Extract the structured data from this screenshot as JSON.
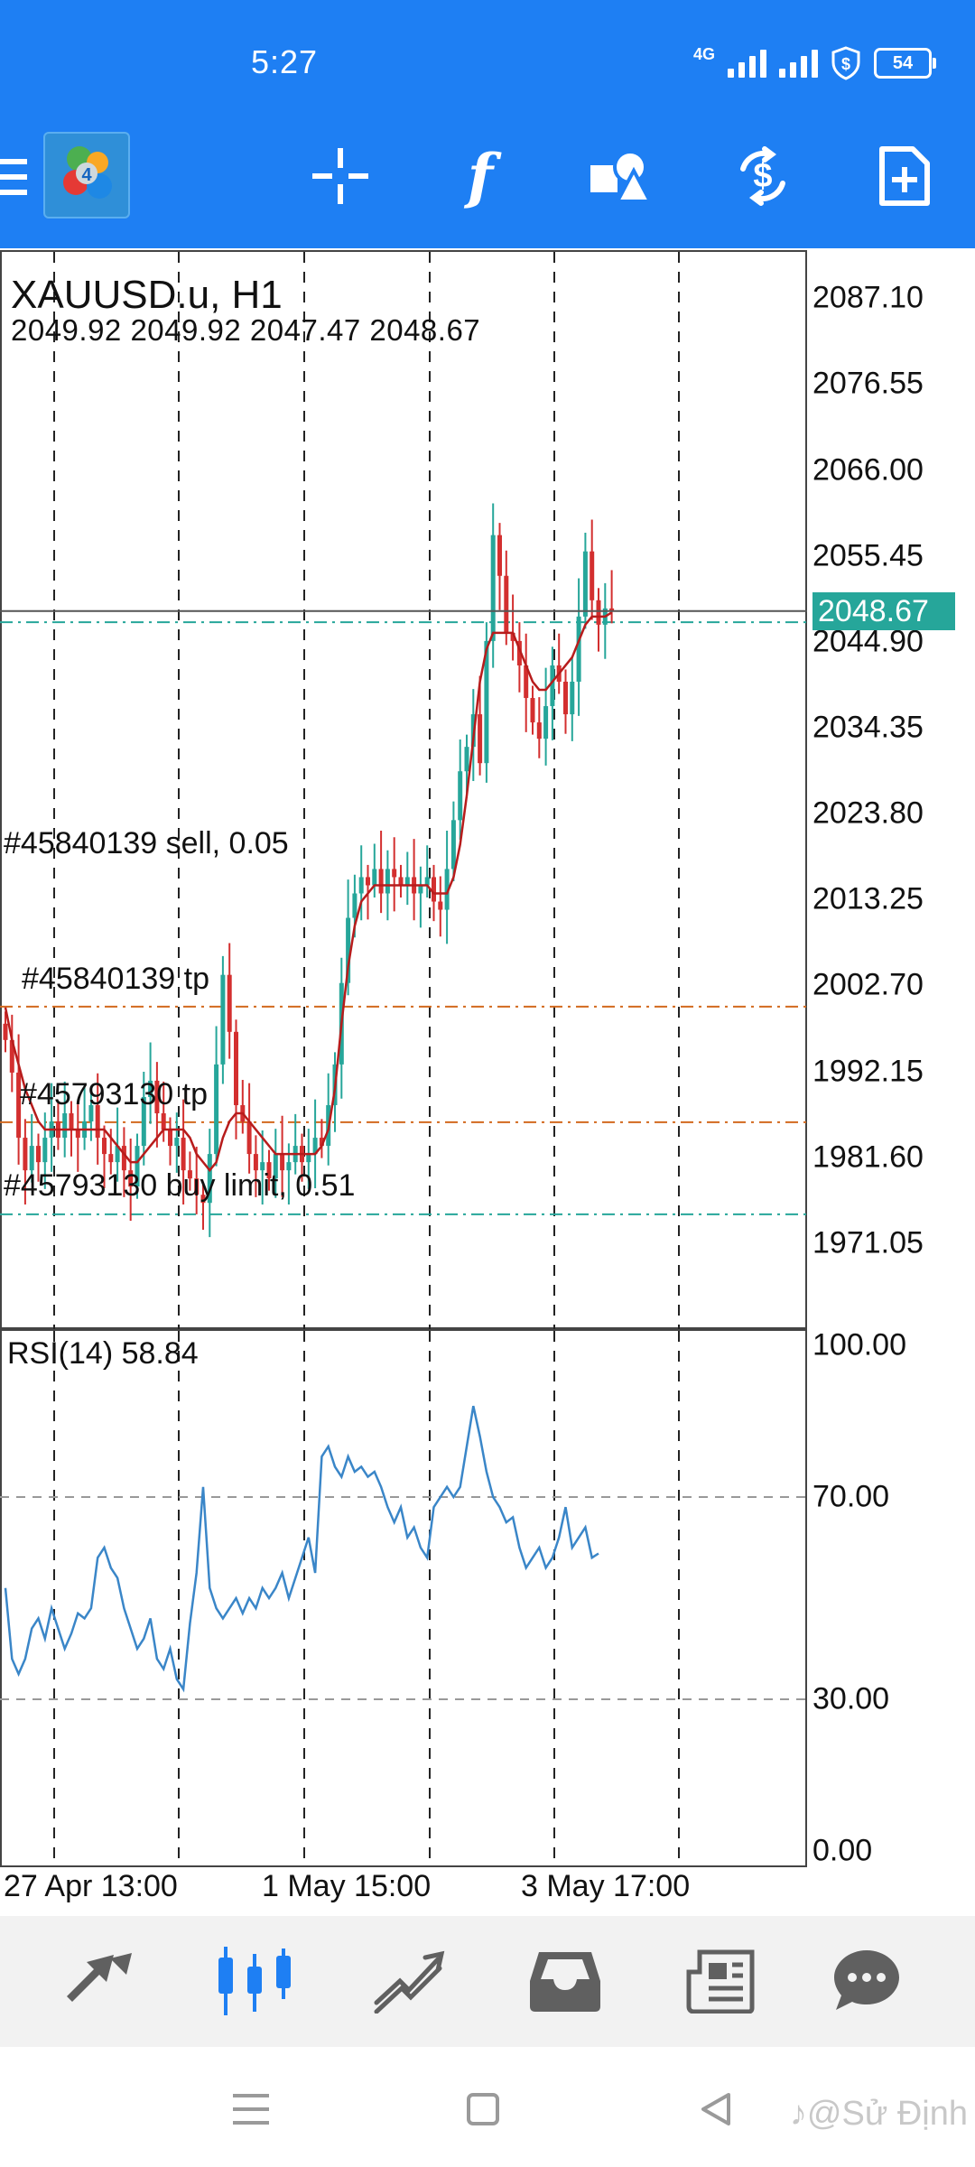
{
  "status_bar": {
    "time": "5:27",
    "network": "4G",
    "battery": "54"
  },
  "toolbar": {
    "logo_icon": "metatrader-logo-icon",
    "icons": [
      "menu-icon",
      "crosshair-icon",
      "indicators-icon",
      "objects-icon",
      "trade-icon",
      "new-order-icon"
    ],
    "indicators_label": "f"
  },
  "chart": {
    "symbol_timeframe": "XAUUSD.u, H1",
    "ohlc": "2049.92 2049.92 2047.47 2048.67",
    "current_price": "2048.67",
    "price_ticks": [
      "2087.10",
      "2076.55",
      "2066.00",
      "2055.45",
      "2044.90",
      "2034.35",
      "2023.80",
      "2013.25",
      "2002.70",
      "1992.15",
      "1981.60",
      "1971.05"
    ],
    "orders": [
      {
        "label": "#45840139 sell, 0.05",
        "price": 2047.3,
        "color": "#26a69a"
      },
      {
        "label": "#45840139 tp",
        "price": 2000.1,
        "color": "#d2691e"
      },
      {
        "label": "#45793130 tp",
        "price": 1985.9,
        "color": "#d2691e"
      },
      {
        "label": "#45793130 buy limit, 0.51",
        "price": 1974.6,
        "color": "#26a69a"
      }
    ],
    "time_labels": [
      "27 Apr 13:00",
      "1 May 15:00",
      "3 May 17:00"
    ],
    "colors": {
      "bull": "#26a69a",
      "bear": "#d32f2f",
      "ma": "#b71c1c",
      "rsi": "#3a86c8"
    }
  },
  "rsi": {
    "label": "RSI(14) 58.84",
    "ticks": [
      "100.00",
      "70.00",
      "30.00",
      "0.00"
    ]
  },
  "chart_data": [
    {
      "type": "candlestick",
      "title": "XAUUSD.u, H1",
      "ylim": [
        1960.5,
        2093.0
      ],
      "close_series": [
        1996,
        1992,
        1984,
        1980,
        1983,
        1981,
        1984,
        1986,
        1984,
        1987,
        1985,
        1984,
        1986,
        1988,
        1984,
        1982,
        1981,
        1983,
        1980,
        1978,
        1983,
        1989,
        1991,
        1987,
        1985,
        1983,
        1984,
        1980,
        1979,
        1977,
        1976,
        1982,
        1993,
        2004,
        1997,
        1988,
        1986,
        1982,
        1980,
        1981,
        1979,
        1982,
        1980,
        1981,
        1983,
        1981,
        1982,
        1984,
        1983,
        1988,
        1993,
        2003,
        2011,
        2014,
        2016,
        2015,
        2017,
        2014,
        2017,
        2016,
        2015,
        2016,
        2014,
        2015,
        2016,
        2013,
        2012,
        2017,
        2023,
        2029,
        2032,
        2036,
        2030,
        2045,
        2058,
        2053,
        2046,
        2045,
        2042,
        2038,
        2035,
        2033,
        2037,
        2042,
        2040,
        2036,
        2040,
        2048,
        2056,
        2050,
        2047,
        2049,
        2048.67
      ],
      "ma_series": [
        2000,
        1996,
        1993,
        1990,
        1988,
        1986,
        1985,
        1985,
        1985,
        1985,
        1985,
        1985,
        1985,
        1985,
        1985,
        1985,
        1984,
        1983,
        1982,
        1981,
        1981,
        1982,
        1983,
        1984,
        1985,
        1985,
        1985,
        1985,
        1984,
        1982,
        1981,
        1980,
        1981,
        1984,
        1986,
        1987,
        1987,
        1986,
        1985,
        1984,
        1983,
        1982,
        1982,
        1982,
        1982,
        1982,
        1982,
        1982,
        1983,
        1985,
        1990,
        1998,
        2005,
        2010,
        2013,
        2014,
        2015,
        2015,
        2015,
        2015,
        2015,
        2015,
        2015,
        2015,
        2015,
        2014,
        2014,
        2014,
        2016,
        2020,
        2026,
        2033,
        2040,
        2044,
        2046,
        2046,
        2046,
        2046,
        2044,
        2042,
        2040,
        2039,
        2039,
        2040,
        2041,
        2042,
        2043,
        2045,
        2047,
        2048,
        2048,
        2048,
        2048.5
      ]
    },
    {
      "type": "line",
      "title": "RSI(14) 58.84",
      "ylim": [
        0,
        100
      ],
      "series": [
        {
          "name": "RSI(14)",
          "values": [
            52,
            38,
            35,
            38,
            44,
            46,
            42,
            48,
            44,
            40,
            43,
            47,
            46,
            48,
            58,
            60,
            56,
            54,
            48,
            44,
            40,
            42,
            46,
            38,
            36,
            40,
            34,
            32,
            45,
            55,
            72,
            52,
            48,
            46,
            48,
            50,
            47,
            50,
            48,
            52,
            50,
            52,
            55,
            50,
            54,
            58,
            62,
            55,
            78,
            80,
            76,
            74,
            78,
            75,
            76,
            74,
            75,
            72,
            68,
            65,
            68,
            62,
            64,
            60,
            58,
            68,
            70,
            72,
            70,
            72,
            80,
            88,
            82,
            75,
            70,
            68,
            65,
            66,
            60,
            56,
            58,
            60,
            56,
            58,
            62,
            68,
            60,
            62,
            64,
            58,
            58.84
          ]
        }
      ]
    }
  ],
  "bottom_nav": {
    "items": [
      "quotes-icon",
      "chart-icon",
      "trade-icon",
      "history-icon",
      "news-icon",
      "messages-icon"
    ]
  },
  "system_nav": {
    "watermark": "♪@Sử Định"
  }
}
